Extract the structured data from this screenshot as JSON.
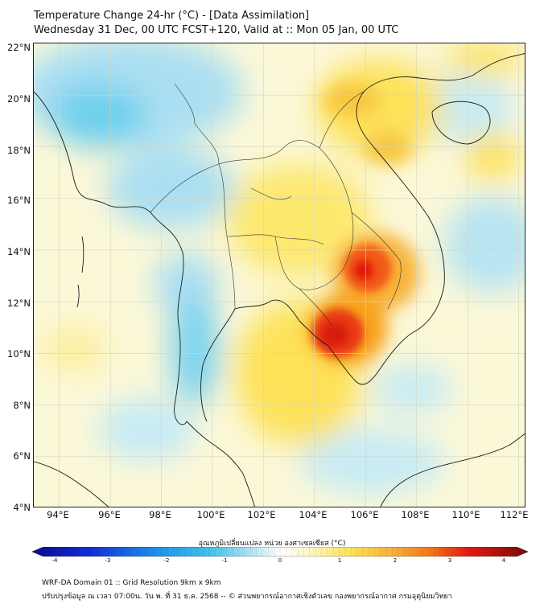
{
  "header": {
    "title": "Temperature Change 24-hr (°C) - [Data Assimilation]",
    "subtitle": "Wednesday 31 Dec, 00 UTC FCST+120, Valid at :: Mon 05 Jan, 00 UTC"
  },
  "map": {
    "lat_labels": [
      "22°N",
      "20°N",
      "18°N",
      "16°N",
      "14°N",
      "12°N",
      "10°N",
      "8°N",
      "6°N",
      "4°N"
    ],
    "lon_labels": [
      "94°E",
      "96°E",
      "98°E",
      "100°E",
      "102°E",
      "104°E",
      "106°E",
      "108°E",
      "110°E",
      "112°E"
    ],
    "lat_range": [
      4,
      22
    ],
    "lon_range": [
      93,
      112.3
    ],
    "colors": {
      "strong_warm": "#e3190f",
      "warm": "#f7a21c",
      "mild_warm": "#fde25a",
      "neutral": "#fbf8d8",
      "cool": "#aadff2",
      "cold": "#45c1e8"
    }
  },
  "colorbar": {
    "title": "อุณหภูมิเปลี่ยนแปลง หน่วย องศาเซลเซียส (°C)",
    "ticks": [
      "-4",
      "-3",
      "-2",
      "-1",
      "0",
      "1",
      "2",
      "3",
      "4"
    ],
    "range": [
      -4,
      4
    ]
  },
  "footer": {
    "line1": "WRF-DA Domain 01 :: Grid Resolution 9km x 9km",
    "line2": "ปรับปรุงข้อมูล ณ เวลา 07:00น. วัน พ. ที่ 31 ธ.ค. 2568 -- © ส่วนพยากรณ์อากาศเชิงตัวเลข กองพยากรณ์อากาศ กรมอุตุนิยมวิทยา"
  }
}
